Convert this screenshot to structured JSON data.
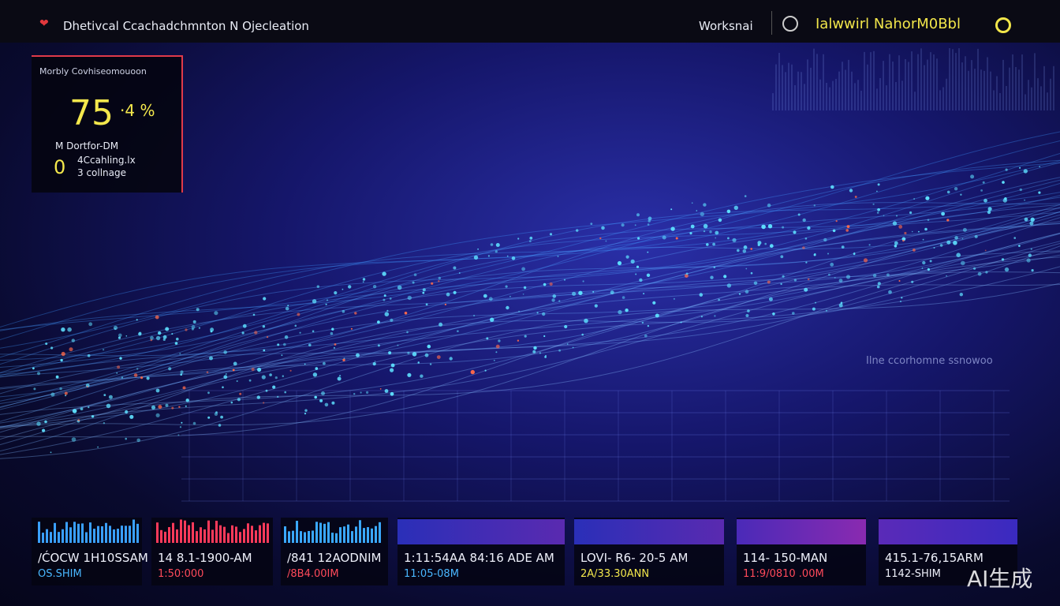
{
  "header": {
    "title": "Dhetivcal Ccachadchmnton N Ojecleation",
    "workspace": "Worksnai",
    "user": "Ialwwirl NahorM0Bbl"
  },
  "status_panel": {
    "label": "Morbly Covhiseomouoon",
    "value": "75",
    "unit": "·4 %",
    "indicator": "0",
    "lines": [
      "M  Dortfor-DM",
      "4Ccahling.lx",
      "3 collnage"
    ]
  },
  "overlay_label": "Ilne ccorhomne ssnowoo",
  "cards": [
    {
      "time": "/ĆOCW 1H10SSAM",
      "sub": "OS.SHIM"
    },
    {
      "time": "14 8.1-1900-AM",
      "sub": "1:50:000"
    },
    {
      "time": "/841 12AODNIM",
      "sub": "/8B4.00IM"
    },
    {
      "time": "1:11:54AA 84:16 ADE AM",
      "sub": "11:05-08M"
    },
    {
      "time": "LOVI- R6- 20-5 AM",
      "sub": "2A/33.30ANN"
    },
    {
      "time": "114- 150-MAN",
      "sub": "11:9/0810 .00M"
    },
    {
      "time": "415.1-76,15ARM",
      "sub": "1142-SHIM"
    }
  ],
  "watermark": "AI生成"
}
